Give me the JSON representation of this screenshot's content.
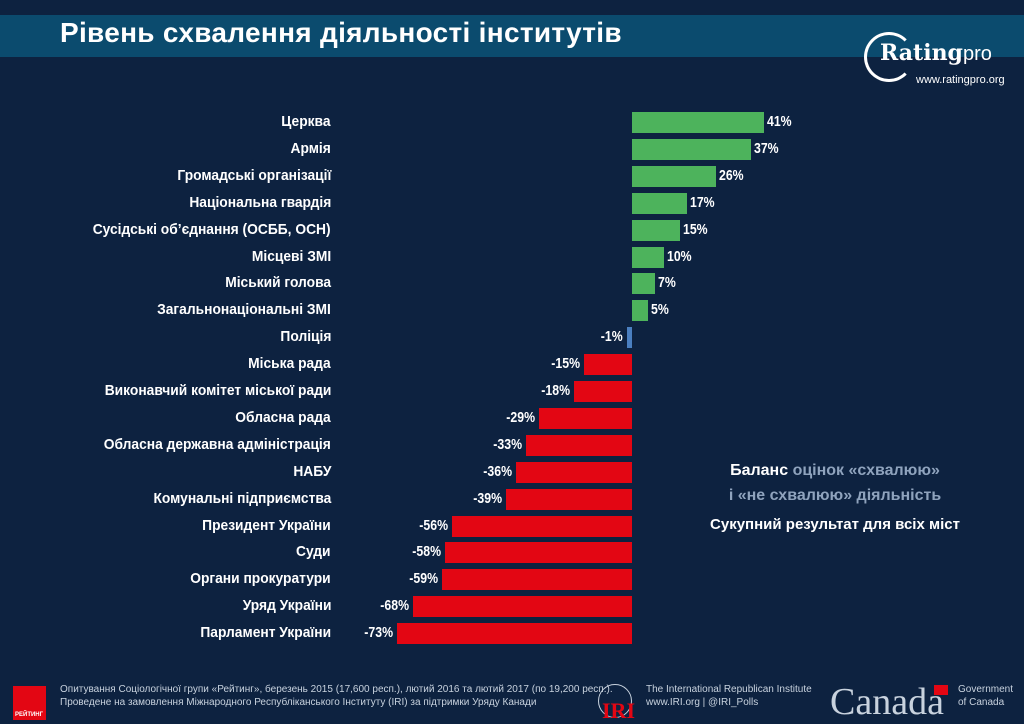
{
  "header": {
    "title": "Рівень схвалення діяльності інститутів"
  },
  "logo": {
    "brand": "Ratingpro",
    "url": "www.ratingpro.org"
  },
  "chart_data": {
    "type": "bar",
    "orientation": "horizontal",
    "title": "Рівень схвалення діяльності інститутів",
    "unit": "%",
    "categories": [
      "Церква",
      "Армія",
      "Громадські організації",
      "Національна гвардія",
      "Сусідські об’єднання (ОСББ, ОСН)",
      "Місцеві ЗМІ",
      "Міський голова",
      "Загальнонаціональні ЗМІ",
      "Поліція",
      "Міська рада",
      "Виконавчий комітет міської ради",
      "Обласна рада",
      "Обласна державна адміністрація",
      "НАБУ",
      "Комунальні підприємства",
      "Президент України",
      "Суди",
      "Органи прокуратури",
      "Уряд України",
      "Парламент України"
    ],
    "values": [
      41,
      37,
      26,
      17,
      15,
      10,
      7,
      5,
      -1,
      -15,
      -18,
      -29,
      -33,
      -36,
      -39,
      -56,
      -58,
      -59,
      -68,
      -73
    ],
    "labels": [
      "41%",
      "37%",
      "26%",
      "17%",
      "15%",
      "10%",
      "7%",
      "5%",
      "-1%",
      "-15%",
      "-18%",
      "-29%",
      "-33%",
      "-36%",
      "-39%",
      "-56%",
      "-58%",
      "-59%",
      "-68%",
      "-73%"
    ],
    "colors": {
      "positive": "#4db35c",
      "small_negative": "#4a7fc0",
      "negative": "#e30613"
    },
    "xlim": [
      -73,
      41
    ],
    "grid": false
  },
  "legend": {
    "line1_a": "Баланс",
    "line1_b": "оцінок «схвалюю»",
    "line2": "і «не схвалюю» діяльність",
    "subtitle": "Сукупний результат для всіх міст"
  },
  "footer": {
    "rating_logo": "РЕЙТИНГ",
    "source_line1": "Опитування Соціологічної групи «Рейтинг», березень 2015 (17,600 респ.), лютий 2016 та лютий 2017 (по 19,200 респ.).",
    "source_line2": "Проведене на замовлення Міжнародного Республіканського Інституту (IRI) за підтримки Уряду Канади",
    "iri_logo": "IRI",
    "iri_name": "The International Republican Institute",
    "iri_links": "www.IRI.org | @IRI_Polls",
    "canada_wordmark": "Canada",
    "gov_line1": "Government",
    "gov_line2": "of Canada"
  }
}
